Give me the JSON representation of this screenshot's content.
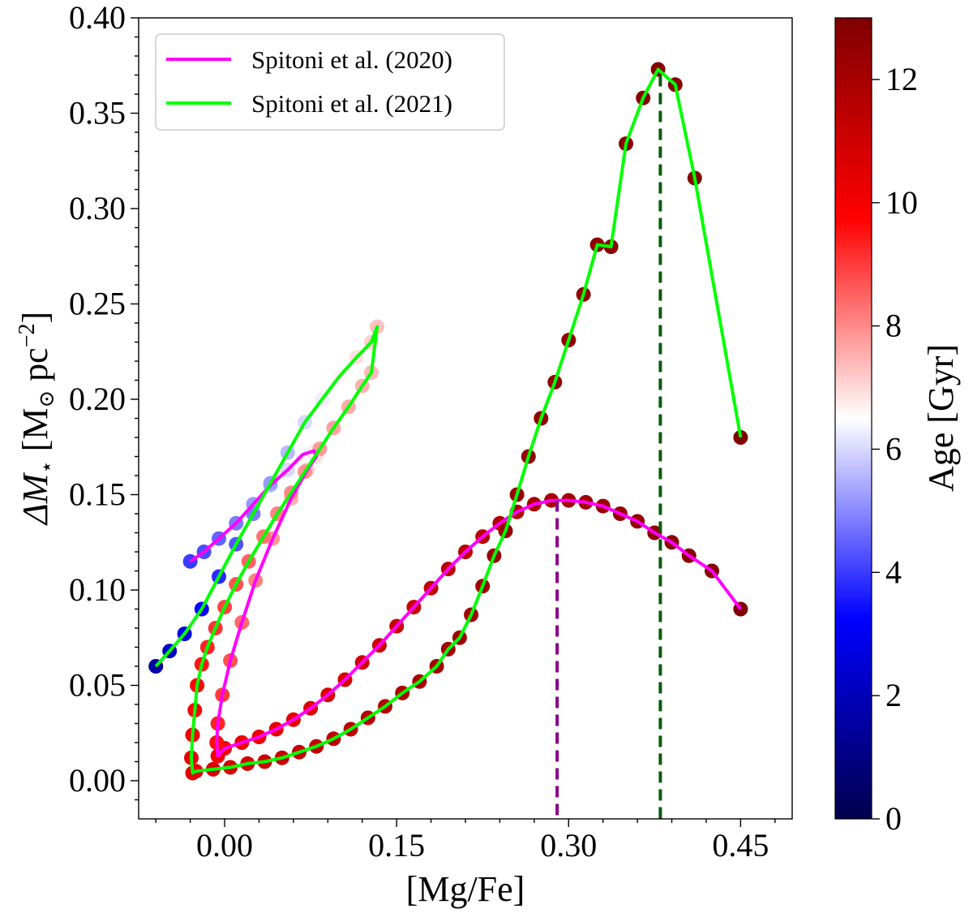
{
  "chart_data": {
    "type": "scatter",
    "xlabel": "[Mg/Fe]",
    "ylabel_parts": {
      "symbol": "ΔM",
      "subscript": "⋆",
      "unit_open": " [M",
      "unit_sub": "⊙",
      "unit_mid": " pc",
      "unit_sup": "−2",
      "unit_close": "]"
    },
    "xlim": [
      -0.075,
      0.495
    ],
    "ylim": [
      -0.02,
      0.4
    ],
    "xticks": [
      "0.00",
      "0.15",
      "0.30",
      "0.45"
    ],
    "xtick_values": [
      0.0,
      0.15,
      0.3,
      0.45
    ],
    "yticks": [
      "0.00",
      "0.05",
      "0.10",
      "0.15",
      "0.20",
      "0.25",
      "0.30",
      "0.35",
      "0.40"
    ],
    "ytick_values": [
      0.0,
      0.05,
      0.1,
      0.15,
      0.2,
      0.25,
      0.3,
      0.35,
      0.4
    ],
    "legend": {
      "placement": "upper-left",
      "entries": [
        {
          "name": "Spitoni et al. (2020)",
          "color": "#ff00ff"
        },
        {
          "name": "Spitoni et al. (2021)",
          "color": "#00ff00"
        }
      ]
    },
    "colorbar": {
      "label": "Age [Gyr]",
      "range": [
        0,
        13
      ],
      "ticks": [
        "0",
        "2",
        "4",
        "6",
        "8",
        "10",
        "12"
      ],
      "tick_values": [
        0,
        2,
        4,
        6,
        8,
        10,
        12
      ],
      "colormap": [
        "#00004c",
        "#0000ff",
        "#ffffff",
        "#ff0000",
        "#800000"
      ]
    },
    "vlines": [
      {
        "x": 0.29,
        "y_top": 0.147,
        "color": "#8b008b",
        "style": "dashed"
      },
      {
        "x": 0.38,
        "y_top": 0.37,
        "color": "#0b5a0b",
        "style": "dashed"
      }
    ],
    "series": [
      {
        "name": "Spitoni et al. (2020)",
        "color": "#ff00ff",
        "points": [
          [
            0.45,
            0.09,
            13.0
          ],
          [
            0.425,
            0.11,
            12.9
          ],
          [
            0.405,
            0.118,
            12.8
          ],
          [
            0.39,
            0.125,
            12.7
          ],
          [
            0.375,
            0.13,
            12.6
          ],
          [
            0.36,
            0.136,
            12.5
          ],
          [
            0.345,
            0.14,
            12.4
          ],
          [
            0.33,
            0.144,
            12.3
          ],
          [
            0.315,
            0.146,
            12.2
          ],
          [
            0.3,
            0.147,
            12.1
          ],
          [
            0.285,
            0.147,
            12.0
          ],
          [
            0.27,
            0.145,
            11.9
          ],
          [
            0.255,
            0.141,
            11.8
          ],
          [
            0.24,
            0.135,
            11.7
          ],
          [
            0.225,
            0.128,
            11.6
          ],
          [
            0.21,
            0.12,
            11.5
          ],
          [
            0.195,
            0.111,
            11.4
          ],
          [
            0.18,
            0.101,
            11.3
          ],
          [
            0.165,
            0.091,
            11.2
          ],
          [
            0.15,
            0.081,
            11.1
          ],
          [
            0.135,
            0.071,
            11.0
          ],
          [
            0.12,
            0.062,
            10.9
          ],
          [
            0.105,
            0.053,
            10.8
          ],
          [
            0.09,
            0.045,
            10.7
          ],
          [
            0.075,
            0.038,
            10.6
          ],
          [
            0.06,
            0.032,
            10.5
          ],
          [
            0.045,
            0.027,
            10.4
          ],
          [
            0.03,
            0.023,
            10.3
          ],
          [
            0.015,
            0.02,
            10.2
          ],
          [
            0.0,
            0.017,
            10.1
          ],
          [
            -0.006,
            0.013,
            10.0
          ],
          [
            -0.007,
            0.02,
            9.6
          ],
          [
            -0.006,
            0.03,
            9.3
          ],
          [
            -0.002,
            0.045,
            9.0
          ],
          [
            0.005,
            0.063,
            8.7
          ],
          [
            0.015,
            0.083,
            8.4
          ],
          [
            0.027,
            0.105,
            8.1
          ],
          [
            0.042,
            0.127,
            7.8
          ],
          [
            0.058,
            0.148,
            7.5
          ],
          [
            0.072,
            0.163,
            7.2
          ],
          [
            0.08,
            0.17,
            6.9
          ],
          [
            0.078,
            0.173,
            6.7
          ],
          [
            0.068,
            0.171,
            6.4
          ],
          [
            0.055,
            0.163,
            6.0
          ],
          [
            0.04,
            0.155,
            5.6
          ],
          [
            0.025,
            0.145,
            5.2
          ],
          [
            0.01,
            0.135,
            4.8
          ],
          [
            -0.005,
            0.127,
            4.5
          ],
          [
            -0.018,
            0.12,
            4.2
          ],
          [
            -0.03,
            0.115,
            4.0
          ]
        ]
      },
      {
        "name": "Spitoni et al. (2021)",
        "color": "#00ff00",
        "points": [
          [
            0.45,
            0.18,
            13.0
          ],
          [
            0.41,
            0.316,
            12.95
          ],
          [
            0.393,
            0.365,
            12.9
          ],
          [
            0.378,
            0.373,
            12.85
          ],
          [
            0.365,
            0.358,
            12.8
          ],
          [
            0.35,
            0.334,
            12.75
          ],
          [
            0.337,
            0.28,
            12.7
          ],
          [
            0.325,
            0.281,
            12.65
          ],
          [
            0.313,
            0.255,
            12.6
          ],
          [
            0.3,
            0.231,
            12.55
          ],
          [
            0.288,
            0.209,
            12.5
          ],
          [
            0.276,
            0.19,
            12.45
          ],
          [
            0.265,
            0.17,
            12.4
          ],
          [
            0.255,
            0.15,
            12.35
          ],
          [
            0.245,
            0.131,
            12.3
          ],
          [
            0.235,
            0.118,
            12.25
          ],
          [
            0.225,
            0.102,
            12.2
          ],
          [
            0.215,
            0.087,
            12.15
          ],
          [
            0.205,
            0.075,
            12.1
          ],
          [
            0.195,
            0.069,
            12.05
          ],
          [
            0.185,
            0.06,
            12.0
          ],
          [
            0.17,
            0.052,
            11.9
          ],
          [
            0.155,
            0.046,
            11.8
          ],
          [
            0.14,
            0.039,
            11.7
          ],
          [
            0.125,
            0.033,
            11.6
          ],
          [
            0.11,
            0.027,
            11.5
          ],
          [
            0.095,
            0.022,
            11.4
          ],
          [
            0.08,
            0.018,
            11.3
          ],
          [
            0.065,
            0.015,
            11.2
          ],
          [
            0.05,
            0.012,
            11.1
          ],
          [
            0.035,
            0.01,
            11.0
          ],
          [
            0.02,
            0.009,
            10.9
          ],
          [
            0.005,
            0.007,
            10.8
          ],
          [
            -0.01,
            0.006,
            10.7
          ],
          [
            -0.025,
            0.005,
            10.6
          ],
          [
            -0.028,
            0.004,
            10.5
          ],
          [
            -0.029,
            0.012,
            10.3
          ],
          [
            -0.028,
            0.024,
            10.1
          ],
          [
            -0.026,
            0.037,
            9.9
          ],
          [
            -0.024,
            0.05,
            9.7
          ],
          [
            -0.02,
            0.061,
            9.5
          ],
          [
            -0.015,
            0.07,
            9.3
          ],
          [
            -0.008,
            0.08,
            9.1
          ],
          [
            0.0,
            0.091,
            8.9
          ],
          [
            0.01,
            0.103,
            8.7
          ],
          [
            0.021,
            0.115,
            8.5
          ],
          [
            0.034,
            0.128,
            8.3
          ],
          [
            0.046,
            0.14,
            8.1
          ],
          [
            0.058,
            0.151,
            8.0
          ],
          [
            0.07,
            0.162,
            7.9
          ],
          [
            0.083,
            0.174,
            7.8
          ],
          [
            0.095,
            0.185,
            7.7
          ],
          [
            0.108,
            0.196,
            7.6
          ],
          [
            0.12,
            0.207,
            7.5
          ],
          [
            0.128,
            0.214,
            7.4
          ],
          [
            0.133,
            0.238,
            7.3
          ],
          [
            0.128,
            0.23,
            7.1
          ],
          [
            0.115,
            0.222,
            6.9
          ],
          [
            0.1,
            0.212,
            6.6
          ],
          [
            0.085,
            0.2,
            6.3
          ],
          [
            0.07,
            0.188,
            6.0
          ],
          [
            0.055,
            0.172,
            5.6
          ],
          [
            0.04,
            0.156,
            5.2
          ],
          [
            0.025,
            0.14,
            4.8
          ],
          [
            0.01,
            0.124,
            4.3
          ],
          [
            -0.005,
            0.107,
            3.8
          ],
          [
            -0.02,
            0.09,
            3.3
          ],
          [
            -0.035,
            0.077,
            2.8
          ],
          [
            -0.048,
            0.068,
            2.2
          ],
          [
            -0.06,
            0.06,
            1.5
          ]
        ]
      }
    ]
  }
}
